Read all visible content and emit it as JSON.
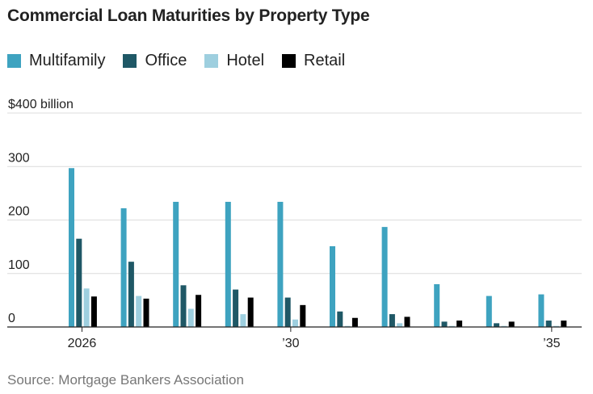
{
  "title": "Commercial Loan Maturities by Property Type",
  "source": "Source: Mortgage Bankers Association",
  "legend": [
    {
      "label": "Multifamily",
      "color": "#3ea3c0"
    },
    {
      "label": "Office",
      "color": "#1f5866"
    },
    {
      "label": "Hotel",
      "color": "#9ecfdf"
    },
    {
      "label": "Retail",
      "color": "#000000"
    }
  ],
  "chart_data": {
    "type": "bar",
    "title": "Commercial Loan Maturities by Property Type",
    "categories": [
      "2026",
      "2027",
      "2028",
      "2029",
      "2030",
      "2031",
      "2032",
      "2033",
      "2034",
      "2035"
    ],
    "x_tick_labels": {
      "2026": "2026",
      "2030": "’30",
      "2035": "’35"
    },
    "y_tick_labels": [
      "0",
      "100",
      "200",
      "300",
      "$400 billion"
    ],
    "y_ticks": [
      0,
      100,
      200,
      300,
      400
    ],
    "ylim": [
      0,
      400
    ],
    "grid": true,
    "legend_position": "top-left",
    "series": [
      {
        "name": "Multifamily",
        "color": "#3ea3c0",
        "values": [
          297,
          222,
          234,
          234,
          234,
          151,
          187,
          80,
          58,
          61
        ]
      },
      {
        "name": "Office",
        "color": "#1f5866",
        "values": [
          165,
          122,
          78,
          70,
          55,
          29,
          24,
          10,
          7,
          12
        ]
      },
      {
        "name": "Hotel",
        "color": "#9ecfdf",
        "values": [
          72,
          58,
          34,
          24,
          14,
          2,
          7,
          2,
          2,
          2
        ]
      },
      {
        "name": "Retail",
        "color": "#000000",
        "values": [
          57,
          53,
          60,
          55,
          41,
          17,
          19,
          12,
          10,
          12
        ]
      }
    ]
  }
}
